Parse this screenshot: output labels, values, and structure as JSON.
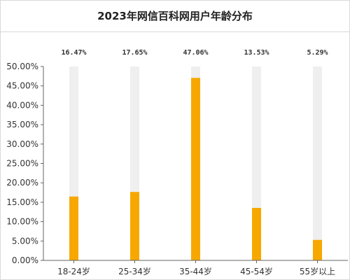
{
  "chart_data": {
    "type": "bar",
    "title": "2023年网信百科网用户年龄分布",
    "categories": [
      "18-24岁",
      "25-34岁",
      "35-44岁",
      "45-54岁",
      "55岁以上"
    ],
    "values": [
      16.47,
      17.65,
      47.06,
      13.53,
      5.29
    ],
    "data_labels": [
      "16.47%",
      "17.65%",
      "47.06%",
      "13.53%",
      "5.29%"
    ],
    "yticks": [
      "0.00%",
      "5.00%",
      "10.00%",
      "15.00%",
      "20.00%",
      "25.00%",
      "30.00%",
      "35.00%",
      "40.00%",
      "45.00%",
      "50.00%"
    ],
    "ylim": [
      0,
      50
    ],
    "xlabel": "",
    "ylabel": "",
    "grid": false,
    "legend": "none",
    "colors": {
      "bar": "#F7A800",
      "track": "#EFEFEF",
      "axis": "#666666"
    }
  }
}
